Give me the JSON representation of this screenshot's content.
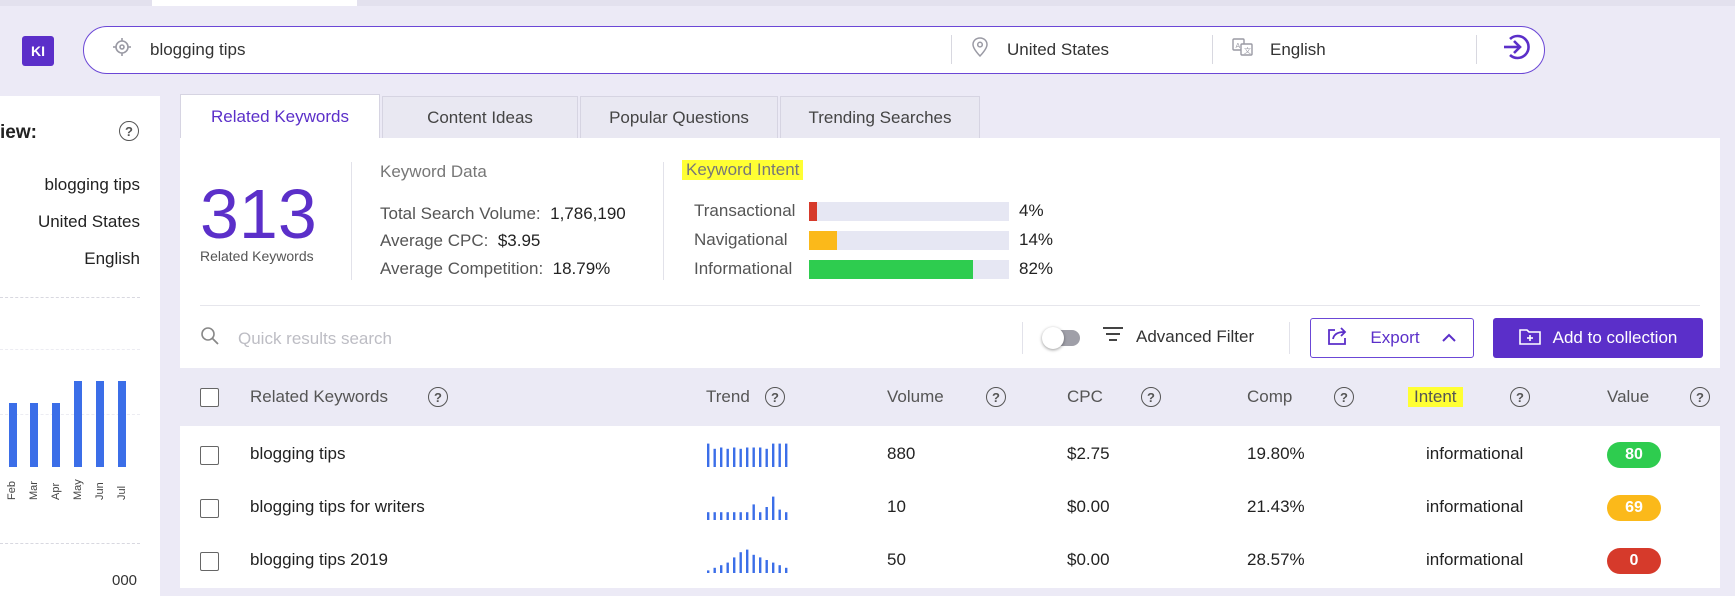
{
  "app": {
    "logo": "KI"
  },
  "search": {
    "keyword": "blogging tips",
    "location": "United States",
    "language": "English"
  },
  "overview": {
    "title": "iew:",
    "keyword": "blogging tips",
    "location": "United States",
    "language": "English",
    "months": [
      "Feb",
      "Mar",
      "Apr",
      "May",
      "Jun",
      "Jul"
    ],
    "bottom_value": "000"
  },
  "tabs": [
    "Related Keywords",
    "Content Ideas",
    "Popular Questions",
    "Trending Searches"
  ],
  "summary": {
    "count": "313",
    "count_label": "Related Keywords",
    "keyword_data_title": "Keyword Data",
    "total_search_volume_label": "Total Search Volume:",
    "total_search_volume": "1,786,190",
    "avg_cpc_label": "Average CPC:",
    "avg_cpc": "$3.95",
    "avg_comp_label": "Average Competition:",
    "avg_comp": "18.79%"
  },
  "intent": {
    "title": "Keyword Intent",
    "rows": [
      {
        "label": "Transactional",
        "pct": "4%",
        "value": 0.04,
        "color": "#d63a2b"
      },
      {
        "label": "Navigational",
        "pct": "14%",
        "value": 0.14,
        "color": "#fbb91a"
      },
      {
        "label": "Informational",
        "pct": "82%",
        "value": 0.82,
        "color": "#2ecc4f"
      }
    ]
  },
  "toolbar": {
    "quick_search_placeholder": "Quick results search",
    "advanced_filter": "Advanced Filter",
    "export": "Export",
    "add_to_collection": "Add to collection"
  },
  "table": {
    "headers": {
      "keyword": "Related Keywords",
      "trend": "Trend",
      "volume": "Volume",
      "cpc": "CPC",
      "comp": "Comp",
      "intent": "Intent",
      "value": "Value"
    },
    "rows": [
      {
        "keyword": "blogging tips",
        "volume": "880",
        "cpc": "$2.75",
        "comp": "19.80%",
        "intent": "informational",
        "value": "80",
        "value_color": "#2ecc4f",
        "trend": [
          0.9,
          0.7,
          0.75,
          0.7,
          0.75,
          0.7,
          0.75,
          0.75,
          0.75,
          0.7,
          0.9,
          0.9,
          0.9
        ]
      },
      {
        "keyword": "blogging tips for writers",
        "volume": "10",
        "cpc": "$0.00",
        "comp": "21.43%",
        "intent": "informational",
        "value": "69",
        "value_color": "#fbb91a",
        "trend": [
          0.3,
          0.3,
          0.3,
          0.3,
          0.3,
          0.3,
          0.3,
          0.6,
          0.3,
          0.5,
          0.9,
          0.4,
          0.3
        ]
      },
      {
        "keyword": "blogging tips 2019",
        "volume": "50",
        "cpc": "$0.00",
        "comp": "28.57%",
        "intent": "informational",
        "value": "0",
        "value_color": "#d63a2b",
        "trend": [
          0.1,
          0.2,
          0.3,
          0.4,
          0.6,
          0.8,
          0.9,
          0.7,
          0.6,
          0.5,
          0.4,
          0.3,
          0.2
        ]
      }
    ]
  }
}
